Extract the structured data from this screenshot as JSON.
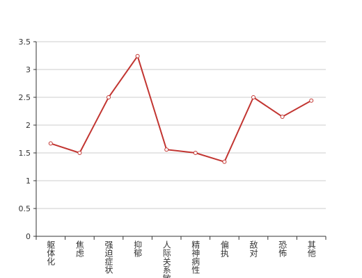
{
  "chart_data": {
    "type": "line",
    "categories": [
      "躯体化",
      "焦虑",
      "强迫症状",
      "抑郁",
      "人际关系敏感",
      "精神病性",
      "偏执",
      "敌对",
      "恐怖",
      "其他"
    ],
    "values": [
      1.67,
      1.5,
      2.5,
      3.24,
      1.56,
      1.5,
      1.34,
      2.5,
      2.15,
      2.44
    ],
    "color": "#c23531",
    "ylim": [
      0,
      3.5
    ],
    "yticks": [
      0,
      0.5,
      1,
      1.5,
      2,
      2.5,
      3,
      3.5
    ],
    "grid": true
  }
}
